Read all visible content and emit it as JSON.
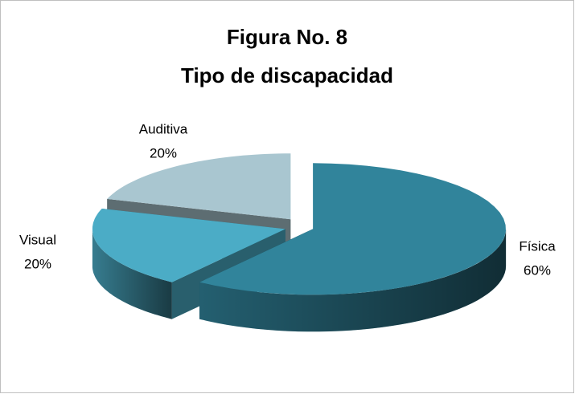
{
  "chart_data": {
    "type": "pie3d",
    "title": "Figura No. 8",
    "subtitle": "Tipo de discapacidad",
    "categories": [
      "Física",
      "Visual",
      "Auditiva"
    ],
    "values": [
      60,
      20,
      20
    ],
    "value_labels": [
      "60%",
      "20%",
      "20%"
    ],
    "colors": [
      "#31849b",
      "#4bacc6",
      "#a9c6d0"
    ]
  }
}
